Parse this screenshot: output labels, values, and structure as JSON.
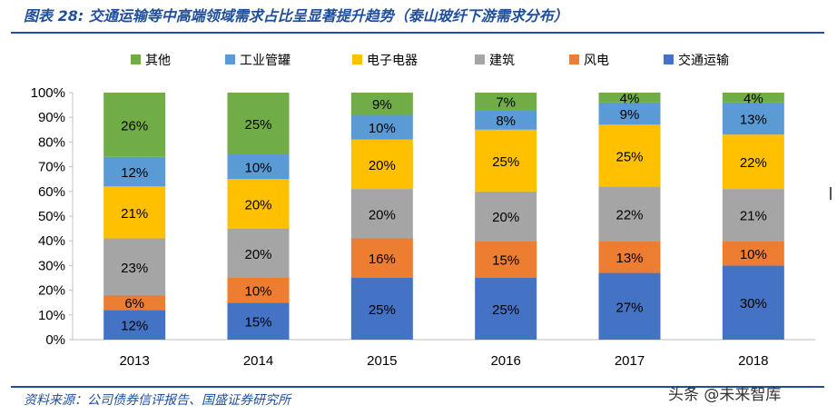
{
  "figure": {
    "title": "图表 28: 交通运输等中高端领域需求占比呈显著提升趋势（泰山玻纤下游需求分布）",
    "source": "资料来源：公司债券信评报告、国盛证券研究所",
    "watermark": "头条 @未来智库"
  },
  "chart_data": {
    "type": "bar",
    "stacked": true,
    "percent": true,
    "categories": [
      "2013",
      "2014",
      "2015",
      "2016",
      "2017",
      "2018"
    ],
    "series": [
      {
        "name": "交通运输",
        "color": "#4472c4",
        "values": [
          12,
          15,
          25,
          25,
          27,
          30
        ]
      },
      {
        "name": "风电",
        "color": "#ed7d31",
        "values": [
          6,
          10,
          16,
          15,
          13,
          10
        ]
      },
      {
        "name": "建筑",
        "color": "#a5a5a5",
        "values": [
          23,
          20,
          20,
          20,
          22,
          21
        ]
      },
      {
        "name": "电子电器",
        "color": "#ffc000",
        "values": [
          21,
          20,
          20,
          25,
          25,
          22
        ]
      },
      {
        "name": "工业管罐",
        "color": "#5b9bd5",
        "values": [
          12,
          10,
          10,
          8,
          9,
          13
        ]
      },
      {
        "name": "其他",
        "color": "#70ad47",
        "values": [
          26,
          25,
          9,
          7,
          4,
          4
        ]
      }
    ],
    "legend_order": [
      "其他",
      "工业管罐",
      "电子电器",
      "建筑",
      "风电",
      "交通运输"
    ],
    "legend_position": "top",
    "ylim": [
      0,
      100
    ],
    "yticks": [
      "0%",
      "10%",
      "20%",
      "30%",
      "40%",
      "50%",
      "60%",
      "70%",
      "80%",
      "90%",
      "100%"
    ],
    "label_suffix": "%",
    "grid": false
  }
}
